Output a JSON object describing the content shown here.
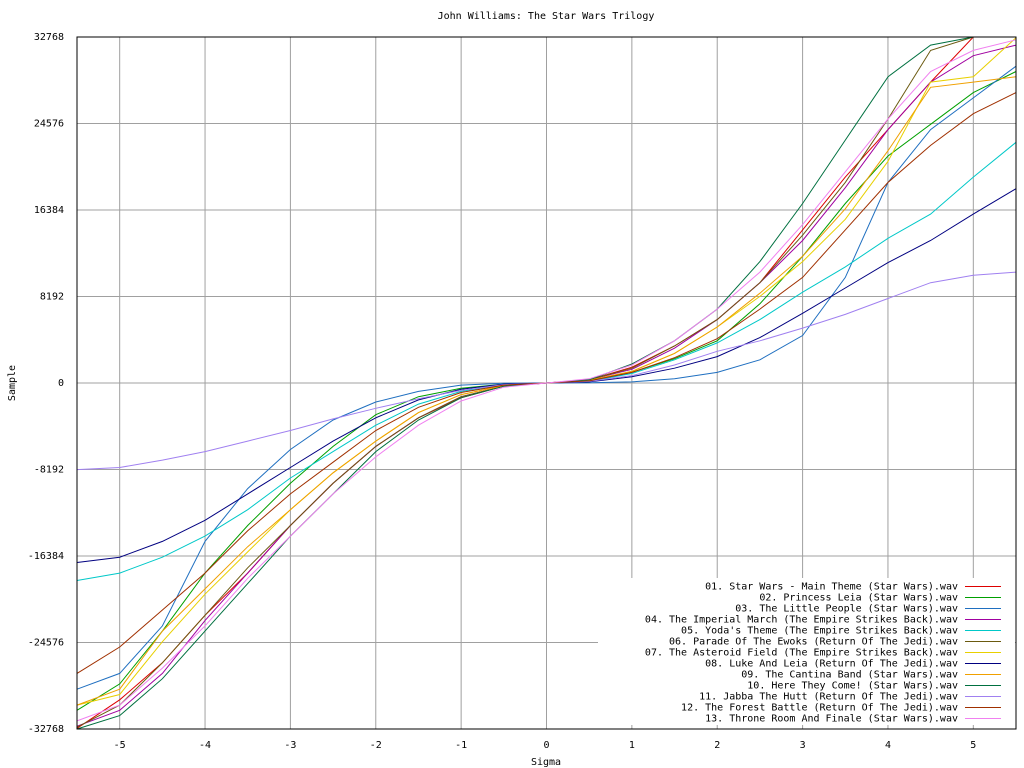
{
  "chart_data": {
    "type": "line",
    "title": "John Williams: The Star Wars Trilogy",
    "x_label": "Sigma",
    "y_label": "Sample",
    "x": [
      -5.5,
      -5,
      -4.5,
      -4,
      -3.5,
      -3,
      -2.5,
      -2,
      -1.5,
      -1,
      -0.5,
      0,
      0.5,
      1,
      1.5,
      2,
      2.5,
      3,
      3.5,
      4,
      4.5,
      5,
      5.5
    ],
    "xlim": [
      -5.5,
      5.5
    ],
    "xticks": [
      -5,
      -4,
      -3,
      -2,
      -1,
      0,
      1,
      2,
      3,
      4,
      5
    ],
    "ylim": [
      -32768,
      32768
    ],
    "yticks": [
      -32768,
      -24576,
      -16384,
      -8192,
      0,
      8192,
      16384,
      24576,
      32768
    ],
    "grid": true,
    "legend": "lower right",
    "series": [
      {
        "name": "01. Star Wars - Main Theme (Star Wars).wav",
        "color": "#dd0000",
        "values": [
          -32700,
          -30000,
          -26500,
          -22000,
          -18000,
          -13500,
          -9500,
          -6000,
          -3300,
          -1400,
          -300,
          0,
          300,
          1500,
          3500,
          6000,
          9500,
          14500,
          19500,
          24000,
          28500,
          32768,
          32768
        ]
      },
      {
        "name": "02. Princess Leia (Star Wars).wav",
        "color": "#00a000",
        "values": [
          -31000,
          -28500,
          -23500,
          -18000,
          -13500,
          -9500,
          -6000,
          -3000,
          -1300,
          -500,
          -100,
          0,
          100,
          1000,
          2300,
          4000,
          7500,
          12000,
          17000,
          21500,
          24500,
          27500,
          29500
        ]
      },
      {
        "name": "03. The Little People (Star Wars).wav",
        "color": "#1f6fc0",
        "values": [
          -29000,
          -27500,
          -23000,
          -15000,
          -10000,
          -6300,
          -3500,
          -1800,
          -800,
          -200,
          -30,
          0,
          30,
          100,
          400,
          1000,
          2200,
          4500,
          10000,
          19000,
          24000,
          27000,
          30000
        ]
      },
      {
        "name": "04. The Imperial March (The Empire Strikes Back).wav",
        "color": "#a000a0",
        "values": [
          -32500,
          -31000,
          -27500,
          -22500,
          -18000,
          -13500,
          -9500,
          -6000,
          -3300,
          -1300,
          -300,
          0,
          300,
          1300,
          3300,
          6000,
          9500,
          13500,
          18500,
          24000,
          28500,
          31000,
          32000
        ]
      },
      {
        "name": "05. Yoda's Theme (The Empire Strikes Back).wav",
        "color": "#00c8c8",
        "values": [
          -18700,
          -18000,
          -16500,
          -14500,
          -12000,
          -9000,
          -6500,
          -4000,
          -2000,
          -800,
          -150,
          0,
          150,
          900,
          2200,
          3800,
          6000,
          8600,
          11000,
          13700,
          16000,
          19500,
          22800
        ]
      },
      {
        "name": "06. Parade Of The Ewoks (Return Of The Jedi).wav",
        "color": "#6b5a10",
        "values": [
          -32600,
          -30500,
          -26500,
          -22000,
          -17500,
          -13500,
          -9500,
          -6000,
          -3300,
          -1300,
          -300,
          0,
          300,
          1400,
          3500,
          6000,
          9500,
          14000,
          19000,
          25000,
          31500,
          32768,
          32768
        ]
      },
      {
        "name": "07. The Asteroid Field (The Empire Strikes Back).wav",
        "color": "#e8d000",
        "values": [
          -30500,
          -29500,
          -24500,
          -20000,
          -16000,
          -12000,
          -8500,
          -5500,
          -2800,
          -1100,
          -250,
          0,
          250,
          1100,
          2800,
          5300,
          8200,
          11500,
          15500,
          21000,
          28500,
          29000,
          32700
        ]
      },
      {
        "name": "08. Luke And Leia (Return Of The Jedi).wav",
        "color": "#000080",
        "values": [
          -17000,
          -16500,
          -15000,
          -13000,
          -10500,
          -8000,
          -5500,
          -3300,
          -1600,
          -600,
          -100,
          0,
          100,
          600,
          1400,
          2500,
          4300,
          6600,
          9000,
          11400,
          13500,
          16000,
          18400
        ]
      },
      {
        "name": "09. The Cantina Band (Star Wars).wav",
        "color": "#f0a000",
        "values": [
          -30500,
          -29000,
          -23500,
          -19500,
          -15500,
          -12000,
          -8500,
          -5500,
          -2800,
          -1100,
          -250,
          0,
          250,
          1100,
          2800,
          5300,
          8500,
          12000,
          16500,
          22000,
          28000,
          28500,
          29000
        ]
      },
      {
        "name": "10. Here They Come! (Star Wars).wav",
        "color": "#007040",
        "values": [
          -32768,
          -31500,
          -28000,
          -23500,
          -19000,
          -14500,
          -10500,
          -6500,
          -3500,
          -1400,
          -300,
          0,
          300,
          1800,
          4000,
          7000,
          11500,
          17000,
          23000,
          29000,
          32000,
          32768,
          32768
        ]
      },
      {
        "name": "11. Jabba The Hutt (Return Of The Jedi).wav",
        "color": "#a080f0",
        "values": [
          -8200,
          -8000,
          -7300,
          -6500,
          -5500,
          -4500,
          -3400,
          -2400,
          -1500,
          -700,
          -150,
          0,
          150,
          700,
          1700,
          3000,
          4000,
          5200,
          6500,
          8000,
          9500,
          10200,
          10500
        ]
      },
      {
        "name": "12. The Forest Battle (Return Of The Jedi).wav",
        "color": "#a03000",
        "values": [
          -27500,
          -25000,
          -21500,
          -18000,
          -14000,
          -10500,
          -7500,
          -4500,
          -2300,
          -900,
          -200,
          0,
          200,
          1000,
          2400,
          4200,
          7000,
          10000,
          14500,
          19000,
          22500,
          25500,
          27500
        ]
      },
      {
        "name": "13. Throne Room And Finale (Star Wars).wav",
        "color": "#f080f0",
        "values": [
          -32000,
          -30500,
          -27000,
          -23000,
          -18500,
          -14500,
          -10500,
          -7000,
          -4000,
          -1700,
          -400,
          0,
          400,
          1700,
          4000,
          7000,
          10500,
          15000,
          20000,
          25000,
          29500,
          31500,
          32500
        ]
      }
    ]
  }
}
